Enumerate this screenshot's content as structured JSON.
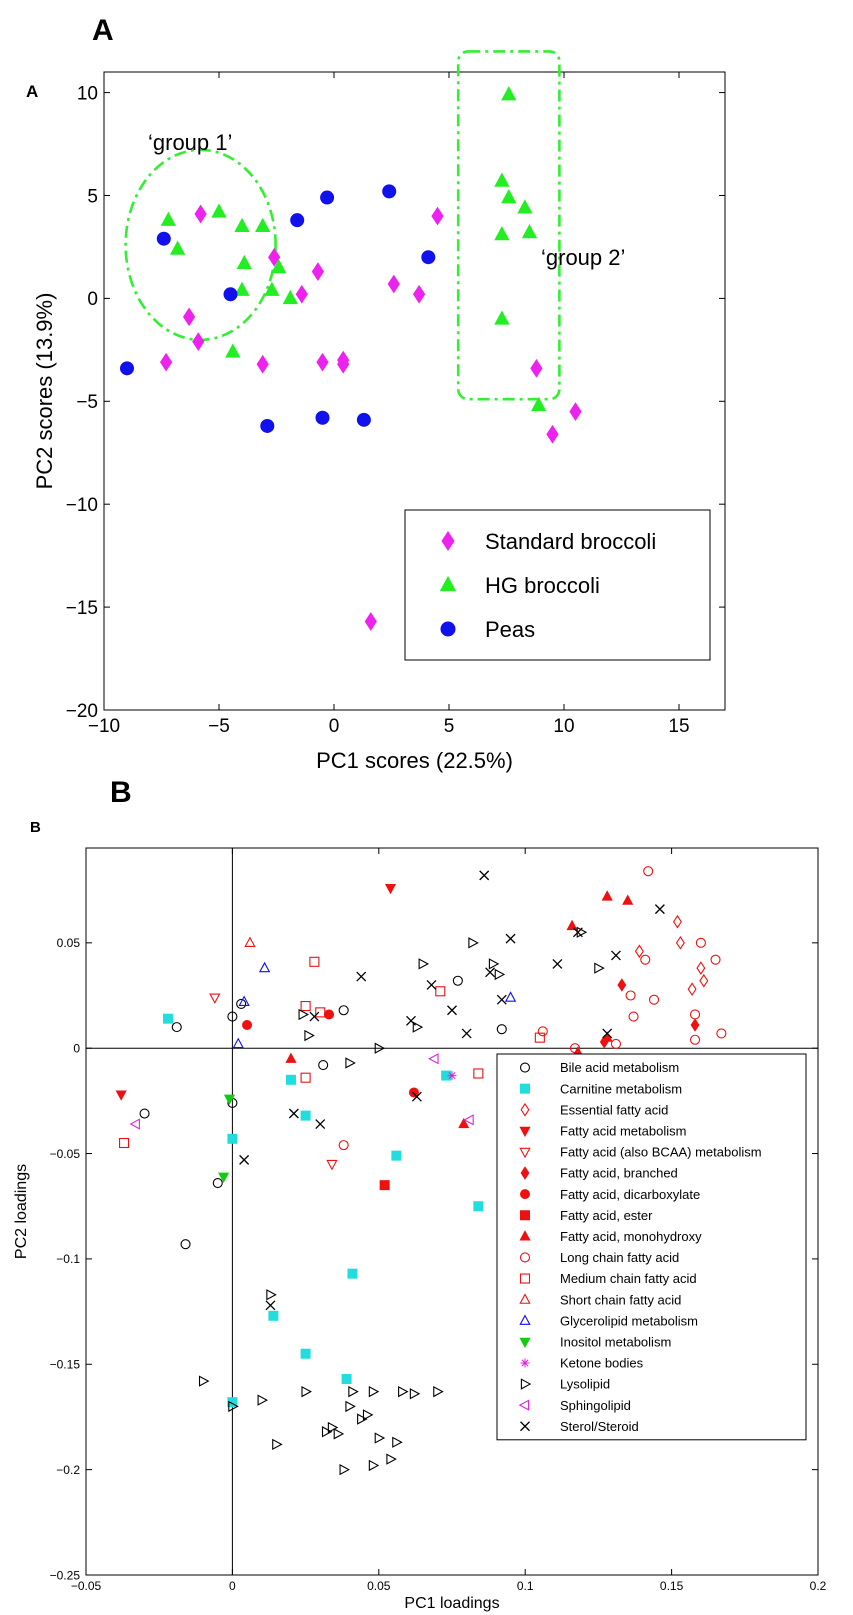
{
  "panel_a": {
    "big_letter": "A",
    "inner_letter": "A",
    "group1_label": "‘group 1’",
    "group2_label": "‘group 2’",
    "group_outline_color": "#33ee33"
  },
  "panel_b": {
    "big_letter": "B",
    "inner_letter": "B"
  },
  "chart_data": [
    {
      "type": "scatter",
      "xlabel": "PC1 scores (22.5%)",
      "ylabel": "PC2 scores (13.9%)",
      "xlim": [
        -10,
        17
      ],
      "ylim": [
        -20,
        11
      ],
      "xticks": [
        -10,
        -5,
        0,
        5,
        10,
        15
      ],
      "yticks": [
        -20,
        -15,
        -10,
        -5,
        0,
        5,
        10
      ],
      "grid": false,
      "legend": "bottom-right",
      "series": [
        {
          "name": "Standard broccoli",
          "marker": "diamond",
          "color": "#ee22ee",
          "points": [
            [
              -5.8,
              4.1
            ],
            [
              -2.6,
              2.0
            ],
            [
              -6.3,
              -0.9
            ],
            [
              -5.9,
              -2.1
            ],
            [
              -7.3,
              -3.1
            ],
            [
              -3.1,
              -3.2
            ],
            [
              -1.4,
              0.2
            ],
            [
              -0.7,
              1.3
            ],
            [
              -0.5,
              -3.1
            ],
            [
              0.4,
              -3.0
            ],
            [
              0.4,
              -3.2
            ],
            [
              2.6,
              0.7
            ],
            [
              3.7,
              0.2
            ],
            [
              4.5,
              4.0
            ],
            [
              8.8,
              -3.4
            ],
            [
              9.5,
              -6.6
            ],
            [
              10.5,
              -5.5
            ],
            [
              1.6,
              -15.7
            ]
          ]
        },
        {
          "name": "HG broccoli",
          "marker": "triangle-up",
          "color": "#22ee22",
          "points": [
            [
              -7.2,
              3.8
            ],
            [
              -6.8,
              2.4
            ],
            [
              -5.0,
              4.2
            ],
            [
              -4.0,
              3.5
            ],
            [
              -3.1,
              3.5
            ],
            [
              -3.9,
              1.7
            ],
            [
              -4.0,
              0.4
            ],
            [
              -2.7,
              0.4
            ],
            [
              -2.4,
              1.5
            ],
            [
              -1.9,
              0.0
            ],
            [
              -4.4,
              -2.6
            ],
            [
              7.6,
              9.9
            ],
            [
              7.3,
              5.7
            ],
            [
              7.6,
              4.9
            ],
            [
              8.3,
              4.4
            ],
            [
              7.3,
              3.1
            ],
            [
              8.5,
              3.2
            ],
            [
              7.3,
              -1.0
            ],
            [
              8.9,
              -5.2
            ]
          ]
        },
        {
          "name": "Peas",
          "marker": "circle",
          "color": "#1111ee",
          "points": [
            [
              -7.4,
              2.9
            ],
            [
              -4.5,
              0.2
            ],
            [
              -1.6,
              3.8
            ],
            [
              -0.3,
              4.9
            ],
            [
              2.4,
              5.2
            ],
            [
              4.1,
              2.0
            ],
            [
              -9.0,
              -3.4
            ],
            [
              -2.9,
              -6.2
            ],
            [
              -0.5,
              -5.8
            ],
            [
              1.3,
              -5.9
            ]
          ]
        }
      ]
    },
    {
      "type": "scatter",
      "xlabel": "PC1 loadings",
      "ylabel": "PC2 loadings",
      "xlim": [
        -0.05,
        0.2
      ],
      "ylim": [
        -0.25,
        0.095
      ],
      "xticks": [
        -0.05,
        0,
        0.05,
        0.1,
        0.15,
        0.2
      ],
      "xtick_labels": [
        "-0.05",
        "0",
        "0.05",
        "0.1",
        "0.15",
        "0.2"
      ],
      "yticks": [
        -0.25,
        -0.2,
        -0.15,
        -0.1,
        -0.05,
        0,
        0.05
      ],
      "ytick_labels": [
        "-0.25",
        "-0.2",
        "-0.15",
        "-0.1",
        "-0.05",
        "0",
        "0.05"
      ],
      "grid": false,
      "zero_lines": true,
      "legend": "bottom-right",
      "series": [
        {
          "name": "Bile acid metabolism",
          "marker": "circle-open",
          "color": "#000000",
          "points": [
            [
              -0.019,
              0.01
            ],
            [
              0.0,
              0.015
            ],
            [
              0.003,
              0.021
            ],
            [
              0.038,
              0.018
            ],
            [
              0.031,
              -0.008
            ],
            [
              -0.03,
              -0.031
            ],
            [
              0.0,
              -0.026
            ],
            [
              -0.005,
              -0.064
            ],
            [
              -0.016,
              -0.093
            ],
            [
              0.077,
              0.032
            ],
            [
              0.092,
              0.009
            ]
          ]
        },
        {
          "name": "Carnitine metabolism",
          "marker": "square",
          "color": "#22dddd",
          "points": [
            [
              -0.022,
              0.014
            ],
            [
              0.02,
              -0.015
            ],
            [
              0.025,
              -0.032
            ],
            [
              0.0,
              -0.043
            ],
            [
              0.056,
              -0.051
            ],
            [
              0.073,
              -0.013
            ],
            [
              0.084,
              -0.075
            ],
            [
              0.041,
              -0.107
            ],
            [
              0.014,
              -0.127
            ],
            [
              0.025,
              -0.145
            ],
            [
              0.039,
              -0.157
            ],
            [
              0.0,
              -0.168
            ]
          ]
        },
        {
          "name": "Essential fatty acid",
          "marker": "diamond-open",
          "color": "#ee1111",
          "points": [
            [
              0.139,
              0.046
            ],
            [
              0.152,
              0.06
            ],
            [
              0.153,
              0.05
            ],
            [
              0.157,
              0.028
            ],
            [
              0.16,
              0.038
            ],
            [
              0.161,
              0.032
            ]
          ]
        },
        {
          "name": "Fatty acid metabolism",
          "marker": "triangle-down",
          "color": "#ee1111",
          "points": [
            [
              -0.038,
              -0.022
            ],
            [
              0.054,
              0.076
            ]
          ]
        },
        {
          "name": "Fatty acid (also BCAA) metabolism",
          "marker": "triangle-down-open",
          "color": "#ee1111",
          "points": [
            [
              -0.006,
              0.024
            ],
            [
              0.034,
              -0.055
            ]
          ]
        },
        {
          "name": "Fatty acid, branched",
          "marker": "diamond",
          "color": "#ee1111",
          "points": [
            [
              0.133,
              0.03
            ],
            [
              0.127,
              0.003
            ],
            [
              0.158,
              0.011
            ]
          ]
        },
        {
          "name": "Fatty acid, dicarboxylate",
          "marker": "circle",
          "color": "#ee1111",
          "points": [
            [
              0.005,
              0.011
            ],
            [
              0.033,
              0.016
            ],
            [
              0.062,
              -0.021
            ],
            [
              0.1,
              -0.019
            ],
            [
              0.12,
              -0.019
            ],
            [
              0.122,
              -0.016
            ]
          ]
        },
        {
          "name": "Fatty acid, ester",
          "marker": "square",
          "color": "#ee1111",
          "points": [
            [
              0.052,
              -0.065
            ]
          ]
        },
        {
          "name": "Fatty acid, monohydroxy",
          "marker": "triangle-up",
          "color": "#ee1111",
          "points": [
            [
              0.02,
              -0.005
            ],
            [
              0.079,
              -0.036
            ],
            [
              0.116,
              0.058
            ],
            [
              0.128,
              0.072
            ],
            [
              0.135,
              0.07
            ],
            [
              0.118,
              -0.002
            ],
            [
              0.128,
              0.005
            ]
          ]
        },
        {
          "name": "Long chain fatty acid",
          "marker": "circle-open",
          "color": "#ee1111",
          "points": [
            [
              0.038,
              -0.046
            ],
            [
              0.106,
              0.008
            ],
            [
              0.112,
              -0.006
            ],
            [
              0.117,
              0.0
            ],
            [
              0.131,
              0.002
            ],
            [
              0.137,
              0.015
            ],
            [
              0.141,
              0.042
            ],
            [
              0.136,
              0.025
            ],
            [
              0.142,
              0.084
            ],
            [
              0.144,
              0.023
            ],
            [
              0.149,
              -0.006
            ],
            [
              0.158,
              0.004
            ],
            [
              0.158,
              0.016
            ],
            [
              0.16,
              0.05
            ],
            [
              0.165,
              0.042
            ],
            [
              0.167,
              0.007
            ]
          ]
        },
        {
          "name": "Medium chain fatty acid",
          "marker": "square-open",
          "color": "#ee1111",
          "points": [
            [
              -0.037,
              -0.045
            ],
            [
              0.025,
              0.02
            ],
            [
              0.028,
              0.041
            ],
            [
              0.03,
              0.017
            ],
            [
              0.025,
              -0.014
            ],
            [
              0.084,
              -0.012
            ],
            [
              0.071,
              0.027
            ],
            [
              0.105,
              0.005
            ]
          ]
        },
        {
          "name": "Short chain fatty acid",
          "marker": "triangle-up-open",
          "color": "#ee1111",
          "points": [
            [
              0.006,
              0.05
            ]
          ]
        },
        {
          "name": "Glycerolipid metabolism",
          "marker": "triangle-up-open",
          "color": "#1111ee",
          "points": [
            [
              0.011,
              0.038
            ],
            [
              0.004,
              0.022
            ],
            [
              0.002,
              0.002
            ],
            [
              0.095,
              0.024
            ]
          ]
        },
        {
          "name": "Inositol metabolism",
          "marker": "triangle-down",
          "color": "#11cc11",
          "points": [
            [
              -0.001,
              -0.024
            ],
            [
              -0.003,
              -0.061
            ]
          ]
        },
        {
          "name": "Ketone bodies",
          "marker": "asterisk",
          "color": "#dd22dd",
          "points": [
            [
              0.075,
              -0.013
            ]
          ]
        },
        {
          "name": "Lysolipid",
          "marker": "triangle-right-open",
          "color": "#000000",
          "points": [
            [
              0.024,
              0.016
            ],
            [
              0.026,
              0.006
            ],
            [
              0.04,
              -0.007
            ],
            [
              0.05,
              0.0
            ],
            [
              0.063,
              0.01
            ],
            [
              0.065,
              0.04
            ],
            [
              0.082,
              0.05
            ],
            [
              0.089,
              0.04
            ],
            [
              0.091,
              0.035
            ],
            [
              0.119,
              0.055
            ],
            [
              0.125,
              0.038
            ],
            [
              0.013,
              -0.117
            ],
            [
              -0.01,
              -0.158
            ],
            [
              0.0,
              -0.17
            ],
            [
              0.01,
              -0.167
            ],
            [
              0.015,
              -0.188
            ],
            [
              0.025,
              -0.163
            ],
            [
              0.032,
              -0.182
            ],
            [
              0.034,
              -0.18
            ],
            [
              0.036,
              -0.183
            ],
            [
              0.038,
              -0.2
            ],
            [
              0.04,
              -0.17
            ],
            [
              0.041,
              -0.163
            ],
            [
              0.044,
              -0.176
            ],
            [
              0.046,
              -0.174
            ],
            [
              0.048,
              -0.198
            ],
            [
              0.048,
              -0.163
            ],
            [
              0.05,
              -0.185
            ],
            [
              0.054,
              -0.195
            ],
            [
              0.056,
              -0.187
            ],
            [
              0.058,
              -0.163
            ],
            [
              0.062,
              -0.164
            ],
            [
              0.07,
              -0.163
            ]
          ]
        },
        {
          "name": "Sphingolipid",
          "marker": "triangle-left-open",
          "color": "#dd22dd",
          "points": [
            [
              -0.033,
              -0.036
            ],
            [
              0.069,
              -0.005
            ],
            [
              0.081,
              -0.034
            ]
          ]
        },
        {
          "name": "Sterol/Steroid",
          "marker": "x",
          "color": "#000000",
          "points": [
            [
              0.086,
              0.082
            ],
            [
              0.044,
              0.034
            ],
            [
              0.061,
              0.013
            ],
            [
              0.068,
              0.03
            ],
            [
              0.075,
              0.018
            ],
            [
              0.08,
              0.007
            ],
            [
              0.092,
              0.023
            ],
            [
              0.095,
              0.052
            ],
            [
              0.088,
              0.036
            ],
            [
              0.111,
              0.04
            ],
            [
              0.118,
              0.055
            ],
            [
              0.131,
              0.044
            ],
            [
              0.146,
              0.066
            ],
            [
              0.128,
              0.007
            ],
            [
              0.028,
              0.015
            ],
            [
              0.021,
              -0.031
            ],
            [
              0.03,
              -0.036
            ],
            [
              0.004,
              -0.053
            ],
            [
              0.013,
              -0.122
            ],
            [
              0.063,
              -0.023
            ]
          ]
        }
      ]
    }
  ]
}
